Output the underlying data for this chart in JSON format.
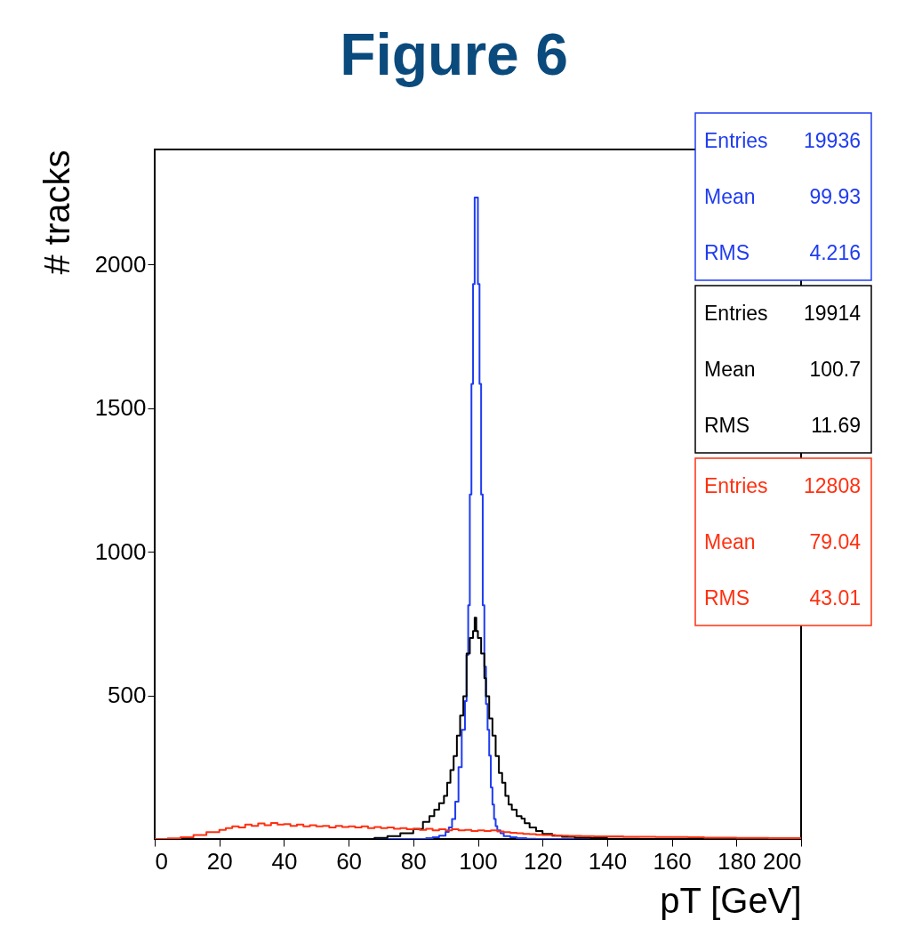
{
  "chart_data": {
    "type": "step",
    "title": "Figure 6",
    "xlabel": "pT [GeV]",
    "ylabel": "# tracks",
    "xlim": [
      0,
      200
    ],
    "ylim": [
      0,
      2400
    ],
    "xticks": [
      0,
      20,
      40,
      60,
      80,
      100,
      120,
      140,
      160,
      180,
      200
    ],
    "yticks": [
      500,
      1000,
      1500,
      2000
    ],
    "grid": false,
    "series": [
      {
        "color": "#1f3cf0",
        "x": [
          0,
          84,
          86,
          88,
          90,
          91,
          92,
          93,
          94,
          95,
          96,
          96.5,
          97,
          97.5,
          98,
          98.5,
          99,
          99.5,
          100,
          100.5,
          101,
          101.5,
          102,
          102.5,
          103,
          103.5,
          104,
          104.5,
          105,
          105.5,
          106,
          107,
          108,
          110,
          112,
          115,
          118,
          120,
          200
        ],
        "values": [
          0,
          3,
          6,
          12,
          25,
          40,
          70,
          130,
          250,
          380,
          480,
          640,
          814,
          1199,
          1584,
          1932,
          2233,
          2233,
          1932,
          1584,
          1199,
          814,
          600,
          470,
          380,
          290,
          180,
          120,
          70,
          45,
          30,
          20,
          10,
          6,
          3,
          1,
          0,
          0,
          0
        ]
      },
      {
        "color": "#000000",
        "x": [
          0,
          68,
          72,
          76,
          80,
          83,
          85,
          86.5,
          88,
          89.5,
          90.5,
          91.5,
          92.5,
          93.5,
          94.5,
          95.5,
          96.5,
          97.5,
          98.5,
          99,
          99.5,
          100,
          101,
          102,
          102.5,
          103.5,
          104.5,
          105.5,
          106.5,
          107.5,
          108.5,
          109.5,
          110.5,
          112,
          113.5,
          114.5,
          116,
          118,
          120,
          123,
          126,
          130,
          135,
          140,
          150,
          160,
          200
        ],
        "values": [
          0,
          4,
          10,
          20,
          35,
          60,
          80,
          102,
          125,
          150,
          196,
          240,
          289,
          360,
          430,
          497,
          646,
          700,
          724,
          770,
          724,
          700,
          646,
          560,
          497,
          420,
          360,
          289,
          230,
          196,
          150,
          120,
          102,
          80,
          71,
          55,
          40,
          28,
          18,
          12,
          8,
          5,
          3,
          1,
          0,
          0,
          0
        ]
      },
      {
        "color": "#ff3010",
        "x": [
          0,
          4,
          8,
          12,
          16,
          20,
          22,
          24,
          26,
          28,
          30,
          32,
          34,
          36,
          38,
          40,
          42,
          44,
          46,
          48,
          50,
          52,
          54,
          56,
          58,
          60,
          62,
          64,
          66,
          68,
          70,
          72,
          74,
          76,
          78,
          80,
          82,
          84,
          86,
          88,
          90,
          92,
          94,
          96,
          98,
          100,
          102,
          104,
          106,
          108,
          110,
          112,
          114,
          116,
          118,
          120,
          124,
          128,
          132,
          136,
          140,
          145,
          150,
          155,
          160,
          165,
          170,
          175,
          180,
          185,
          190,
          195,
          200
        ],
        "values": [
          0,
          2,
          6,
          14,
          24,
          32,
          38,
          44,
          40,
          50,
          46,
          54,
          48,
          56,
          50,
          52,
          46,
          50,
          44,
          48,
          44,
          46,
          40,
          46,
          42,
          44,
          40,
          44,
          38,
          42,
          38,
          40,
          36,
          38,
          34,
          36,
          32,
          36,
          30,
          34,
          30,
          34,
          30,
          32,
          28,
          30,
          28,
          30,
          26,
          24,
          22,
          20,
          18,
          17,
          15,
          14,
          12,
          11,
          10,
          9,
          9,
          8,
          8,
          7,
          7,
          6,
          5,
          5,
          4,
          4,
          3,
          3,
          2
        ]
      }
    ],
    "annotations": [
      "Entries 19936",
      "Mean 99.93",
      "RMS 4.216",
      "Entries 19914",
      "Mean 100.7",
      "RMS 11.69",
      "Entries 12808",
      "Mean 79.04",
      "RMS 43.01"
    ]
  }
}
